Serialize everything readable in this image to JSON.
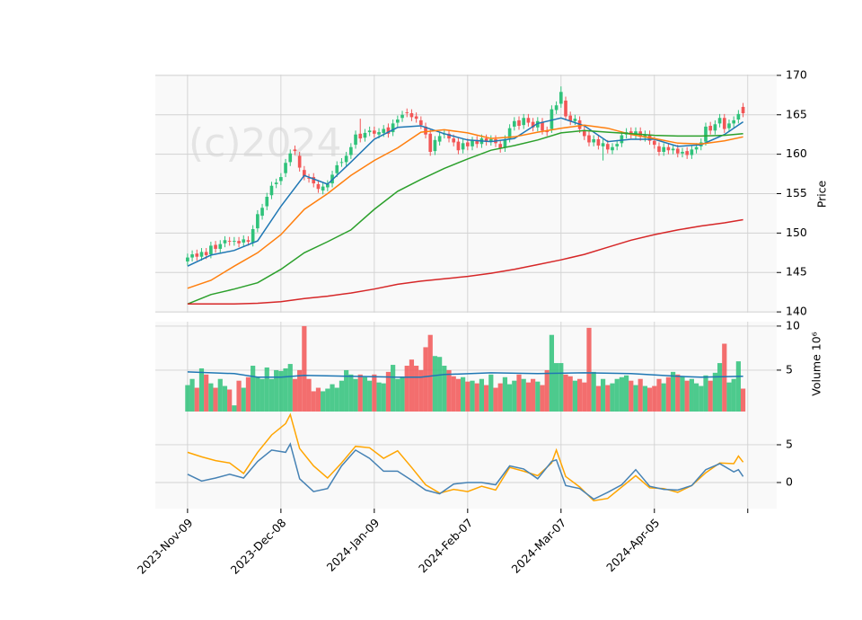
{
  "chart_data": {
    "type": "candlestick",
    "watermark": "(c)2024",
    "xlim": [
      -6.9,
      126.2
    ],
    "xticks": [
      {
        "value": 0,
        "label": "2023-Nov-09"
      },
      {
        "value": 20,
        "label": "2023-Dec-08"
      },
      {
        "value": 40,
        "label": "2024-Jan-09"
      },
      {
        "value": 60,
        "label": "2024-Feb-07"
      },
      {
        "value": 80,
        "label": "2024-Mar-07"
      },
      {
        "value": 100,
        "label": "2024-Apr-05"
      },
      {
        "value": 120,
        "label": null
      }
    ],
    "up_color": "#2fc27a",
    "down_color": "#f25656",
    "grid": true,
    "ylabel": "Price",
    "ylim": [
      139.9,
      170.1
    ],
    "yticks": [
      140,
      145,
      150,
      155,
      160,
      165,
      170
    ],
    "open": [
      146.4,
      146.9,
      147.4,
      147.0,
      147.6,
      147.3,
      148.5,
      148.0,
      148.7,
      149.0,
      148.9,
      149.0,
      148.8,
      149.1,
      148.8,
      150.6,
      152.2,
      153.4,
      154.8,
      156.2,
      156.6,
      157.6,
      159.0,
      160.6,
      159.8,
      158.0,
      157.0,
      157.1,
      156.2,
      155.4,
      155.8,
      156.3,
      157.6,
      158.9,
      159.0,
      159.9,
      161.2,
      162.6,
      162.1,
      162.8,
      163.0,
      162.5,
      162.7,
      163.4,
      162.8,
      164.0,
      164.6,
      165.3,
      165.2,
      164.8,
      164.3,
      163.5,
      162.6,
      160.4,
      161.6,
      162.5,
      162.6,
      162.0,
      161.6,
      160.6,
      161.5,
      161.0,
      161.8,
      161.3,
      162.0,
      161.6,
      161.9,
      161.3,
      160.8,
      162.0,
      163.5,
      164.3,
      163.7,
      164.6,
      164.1,
      163.4,
      164.1,
      163.0,
      163.2,
      165.6,
      166.4,
      166.8,
      164.9,
      164.2,
      164.3,
      163.0,
      162.4,
      161.5,
      161.9,
      161.0,
      161.3,
      160.5,
      161.0,
      161.4,
      162.5,
      162.9,
      162.4,
      162.9,
      162.1,
      162.5,
      161.7,
      161.0,
      160.3,
      160.9,
      160.5,
      160.7,
      160.1,
      160.4,
      159.9,
      160.6,
      161.0,
      161.6,
      163.6,
      163.0,
      163.9,
      164.6,
      163.3,
      163.9,
      164.4,
      166.0
    ],
    "high": [
      147.4,
      147.8,
      147.9,
      148.1,
      148.1,
      148.9,
      149.0,
      149.1,
      149.6,
      149.5,
      149.5,
      149.5,
      149.7,
      149.6,
      151.0,
      152.9,
      153.7,
      155.1,
      156.5,
      156.9,
      157.6,
      159.4,
      160.6,
      161.1,
      160.3,
      158.5,
      157.5,
      157.6,
      156.7,
      156.4,
      156.7,
      157.9,
      159.1,
      159.5,
      160.3,
      161.4,
      163.0,
      164.5,
      163.2,
      163.5,
      163.5,
      163.3,
      163.7,
      163.9,
      164.4,
      164.9,
      165.5,
      165.8,
      165.7,
      165.3,
      164.8,
      164.0,
      163.1,
      162.3,
      162.8,
      163.1,
      163.1,
      162.5,
      162.1,
      161.9,
      162.0,
      162.2,
      162.3,
      162.5,
      162.5,
      162.4,
      162.4,
      161.8,
      162.4,
      163.8,
      164.7,
      164.8,
      165.1,
      165.1,
      164.6,
      164.7,
      164.6,
      163.5,
      166.2,
      166.7,
      168.6,
      167.3,
      165.4,
      165.0,
      164.8,
      163.5,
      162.9,
      162.4,
      162.4,
      161.9,
      161.8,
      161.4,
      161.8,
      162.9,
      163.3,
      163.4,
      163.4,
      163.4,
      163.0,
      163.0,
      162.2,
      161.5,
      161.4,
      161.4,
      161.2,
      161.2,
      160.8,
      160.9,
      161.1,
      161.4,
      162.0,
      164.0,
      164.1,
      164.3,
      165.1,
      165.1,
      164.4,
      164.8,
      165.6,
      166.5
    ],
    "low": [
      145.9,
      146.4,
      146.5,
      146.5,
      146.7,
      146.8,
      147.5,
      147.5,
      148.2,
      148.4,
      148.4,
      148.2,
      148.3,
      148.4,
      148.3,
      150.1,
      151.7,
      152.9,
      154.3,
      155.7,
      156.1,
      157.1,
      158.5,
      159.9,
      157.8,
      156.7,
      156.4,
      155.8,
      155.1,
      154.9,
      155.3,
      155.8,
      157.1,
      158.4,
      158.5,
      159.4,
      160.7,
      161.5,
      161.6,
      162.3,
      162.1,
      162.0,
      162.2,
      162.1,
      162.3,
      163.5,
      164.1,
      164.7,
      164.2,
      164.0,
      163.2,
      162.0,
      159.8,
      159.9,
      161.1,
      162.0,
      161.5,
      161.0,
      160.0,
      160.1,
      160.5,
      160.5,
      160.8,
      160.8,
      161.1,
      161.1,
      160.9,
      160.2,
      160.3,
      161.5,
      163.0,
      163.1,
      163.2,
      163.5,
      162.9,
      162.9,
      162.5,
      162.3,
      162.7,
      165.1,
      165.9,
      164.3,
      163.7,
      163.7,
      162.7,
      161.8,
      161.0,
      161.0,
      160.6,
      159.2,
      160.1,
      160.0,
      160.5,
      160.9,
      162.0,
      162.0,
      161.9,
      161.7,
      161.6,
      161.2,
      160.7,
      159.8,
      159.8,
      160.0,
      160.0,
      159.6,
      159.6,
      159.4,
      159.4,
      160.1,
      160.5,
      161.1,
      162.5,
      162.5,
      163.4,
      162.7,
      162.8,
      163.4,
      163.9,
      164.7
    ],
    "close": [
      146.9,
      147.3,
      147.0,
      147.6,
      147.2,
      148.4,
      148.0,
      148.6,
      149.1,
      148.9,
      149.0,
      148.7,
      149.2,
      148.9,
      150.5,
      152.4,
      153.2,
      154.6,
      156.0,
      156.4,
      157.1,
      158.9,
      160.1,
      160.4,
      158.3,
      157.2,
      156.9,
      156.3,
      155.6,
      155.9,
      156.2,
      157.4,
      158.6,
      159.0,
      159.8,
      160.9,
      162.5,
      162.0,
      162.7,
      163.0,
      162.6,
      162.8,
      163.2,
      162.6,
      163.9,
      164.4,
      165.0,
      165.2,
      164.7,
      164.5,
      163.7,
      162.5,
      160.3,
      161.8,
      162.3,
      162.6,
      162.0,
      161.5,
      160.5,
      161.4,
      161.0,
      161.7,
      161.3,
      162.0,
      161.6,
      161.9,
      161.4,
      160.7,
      161.9,
      163.3,
      164.2,
      163.6,
      164.6,
      164.0,
      163.4,
      164.2,
      163.0,
      162.8,
      165.7,
      166.2,
      167.9,
      164.8,
      164.2,
      164.5,
      163.2,
      162.3,
      161.5,
      161.9,
      161.1,
      161.4,
      160.6,
      160.9,
      161.3,
      162.4,
      162.8,
      162.5,
      162.9,
      162.2,
      162.5,
      161.7,
      161.2,
      160.3,
      160.9,
      160.5,
      160.7,
      160.1,
      160.3,
      159.9,
      160.6,
      160.9,
      161.5,
      163.5,
      163.0,
      163.8,
      164.6,
      163.2,
      163.9,
      164.3,
      165.1,
      165.2
    ],
    "moving_averages": [
      {
        "color": "#1f77b4",
        "x": [
          0,
          5,
          10,
          15,
          20,
          25,
          30,
          35,
          40,
          45,
          50,
          55,
          60,
          65,
          70,
          75,
          80,
          85,
          90,
          95,
          100,
          105,
          110,
          115,
          119
        ],
        "values": [
          145.8,
          147.2,
          147.8,
          149.0,
          153.4,
          157.3,
          156.2,
          159.0,
          161.9,
          163.4,
          163.6,
          162.6,
          161.8,
          161.6,
          162.0,
          163.9,
          164.6,
          163.6,
          161.6,
          161.9,
          161.9,
          161.0,
          161.2,
          162.5,
          164.1
        ]
      },
      {
        "color": "#ff7f0e",
        "x": [
          0,
          5,
          10,
          15,
          20,
          25,
          30,
          35,
          40,
          45,
          50,
          55,
          60,
          65,
          70,
          75,
          80,
          85,
          90,
          95,
          100,
          105,
          110,
          115,
          119
        ],
        "values": [
          143.0,
          144.0,
          145.8,
          147.5,
          149.8,
          153.0,
          155.0,
          157.3,
          159.2,
          160.8,
          162.8,
          163.1,
          162.7,
          162.0,
          162.2,
          162.8,
          163.3,
          163.7,
          163.3,
          162.5,
          162.0,
          161.4,
          161.3,
          161.7,
          162.2
        ]
      },
      {
        "color": "#2ca02c",
        "x": [
          0,
          5,
          10,
          15,
          20,
          25,
          30,
          35,
          40,
          45,
          50,
          55,
          60,
          65,
          70,
          75,
          80,
          85,
          90,
          95,
          100,
          105,
          110,
          115,
          119
        ],
        "values": [
          141.0,
          142.2,
          142.9,
          143.7,
          145.4,
          147.5,
          148.9,
          150.4,
          153.0,
          155.3,
          156.8,
          158.2,
          159.4,
          160.5,
          161.1,
          161.8,
          162.7,
          163.0,
          162.8,
          162.6,
          162.4,
          162.3,
          162.3,
          162.4,
          162.6
        ]
      },
      {
        "color": "#d62728",
        "x": [
          0,
          5,
          10,
          15,
          20,
          25,
          30,
          35,
          40,
          45,
          50,
          55,
          60,
          65,
          70,
          75,
          80,
          85,
          90,
          95,
          100,
          105,
          110,
          115,
          119
        ],
        "values": [
          141.0,
          141.0,
          141.0,
          141.1,
          141.3,
          141.7,
          142.0,
          142.4,
          142.9,
          143.5,
          143.9,
          144.2,
          144.5,
          144.9,
          145.4,
          146.0,
          146.6,
          147.3,
          148.2,
          149.1,
          149.8,
          150.4,
          150.9,
          151.3,
          151.7
        ]
      }
    ],
    "volume_ylabel": "Volume  10⁶",
    "volume_ylim": [
      0.3,
      10.5
    ],
    "volume_yticks": [
      5,
      10
    ],
    "volume": [
      3.3,
      4.0,
      3.0,
      5.2,
      4.5,
      3.5,
      3.0,
      4.0,
      3.2,
      2.8,
      1.0,
      3.8,
      3.0,
      4.2,
      5.5,
      4.2,
      4.0,
      5.3,
      4.0,
      5.0,
      4.9,
      5.2,
      5.7,
      4.0,
      5.0,
      10.0,
      4.0,
      2.6,
      3.0,
      2.6,
      2.9,
      3.4,
      3.0,
      3.8,
      5.0,
      4.5,
      4.0,
      4.5,
      4.2,
      3.8,
      4.5,
      3.6,
      3.5,
      4.8,
      5.6,
      4.0,
      4.2,
      5.5,
      6.2,
      5.5,
      5.0,
      7.6,
      9.0,
      6.6,
      6.5,
      5.5,
      5.0,
      4.3,
      4.0,
      4.2,
      3.7,
      3.8,
      3.5,
      4.0,
      3.3,
      4.5,
      3.0,
      3.5,
      4.2,
      3.4,
      3.8,
      4.5,
      4.0,
      3.6,
      4.0,
      3.7,
      3.3,
      5.0,
      9.0,
      5.8,
      5.8,
      4.5,
      4.3,
      3.8,
      4.0,
      3.6,
      9.8,
      4.8,
      3.2,
      4.0,
      3.3,
      3.5,
      4.0,
      4.2,
      4.4,
      3.8,
      3.3,
      4.0,
      3.2,
      3.0,
      3.2,
      4.0,
      3.5,
      4.2,
      4.8,
      4.5,
      4.3,
      3.8,
      4.0,
      3.5,
      3.2,
      4.4,
      3.8,
      4.7,
      5.8,
      8.0,
      3.6,
      4.0,
      6.0,
      2.9
    ],
    "volume_ma": {
      "color": "#1f77b4",
      "x": [
        0,
        10,
        15,
        20,
        25,
        35,
        45,
        50,
        55,
        65,
        75,
        85,
        95,
        105,
        110,
        119
      ],
      "values": [
        4.8,
        4.6,
        4.2,
        4.2,
        4.4,
        4.3,
        4.2,
        4.2,
        4.5,
        4.7,
        4.6,
        4.7,
        4.6,
        4.3,
        4.2,
        4.3
      ]
    },
    "macd": {
      "ylim": [
        -3.45,
        9.4
      ],
      "yticks": [
        0,
        5
      ],
      "series": [
        {
          "color": "#ffa500",
          "x": [
            0,
            3,
            6,
            9,
            12,
            15,
            18,
            21,
            22,
            24,
            27,
            30,
            33,
            36,
            39,
            42,
            45,
            48,
            51,
            54,
            57,
            60,
            63,
            66,
            69,
            72,
            75,
            78,
            79,
            81,
            84,
            87,
            90,
            93,
            96,
            99,
            102,
            105,
            108,
            111,
            114,
            117,
            118,
            119
          ],
          "values": [
            4.0,
            3.4,
            2.9,
            2.6,
            1.2,
            4.0,
            6.3,
            7.8,
            9.0,
            4.5,
            2.2,
            0.6,
            2.6,
            4.8,
            4.6,
            3.2,
            4.2,
            2.0,
            -0.3,
            -1.4,
            -0.9,
            -1.2,
            -0.5,
            -1.0,
            2.0,
            1.5,
            0.9,
            2.6,
            4.3,
            0.8,
            -0.6,
            -2.4,
            -2.1,
            -0.6,
            0.9,
            -0.7,
            -0.8,
            -1.3,
            -0.4,
            1.3,
            2.6,
            2.5,
            3.5,
            2.7
          ]
        },
        {
          "color": "#4682b4",
          "x": [
            0,
            3,
            6,
            9,
            12,
            15,
            18,
            21,
            22,
            24,
            27,
            30,
            33,
            36,
            39,
            42,
            45,
            48,
            51,
            54,
            57,
            60,
            63,
            66,
            69,
            72,
            75,
            78,
            79,
            81,
            84,
            87,
            90,
            93,
            96,
            99,
            102,
            105,
            108,
            111,
            114,
            117,
            118,
            119
          ],
          "values": [
            1.1,
            0.2,
            0.6,
            1.1,
            0.6,
            2.8,
            4.3,
            4.0,
            5.1,
            0.5,
            -1.2,
            -0.8,
            2.2,
            4.3,
            3.2,
            1.5,
            1.5,
            0.3,
            -1.0,
            -1.5,
            -0.2,
            0.0,
            0.0,
            -0.3,
            2.2,
            1.8,
            0.5,
            2.8,
            3.0,
            -0.4,
            -0.8,
            -2.2,
            -1.3,
            -0.3,
            1.7,
            -0.5,
            -0.9,
            -1.0,
            -0.4,
            1.7,
            2.5,
            1.4,
            1.7,
            0.8
          ]
        }
      ]
    }
  }
}
